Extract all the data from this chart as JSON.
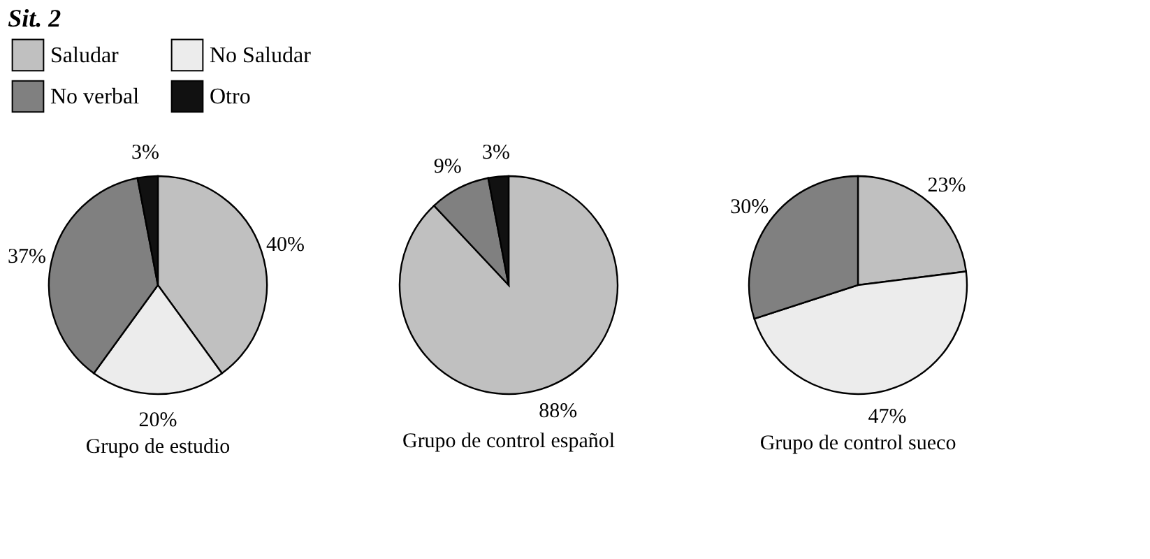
{
  "chart_data": [
    {
      "type": "pie",
      "title": "Grupo de estudio",
      "annotations": [
        "Sit. 2"
      ],
      "legend": "top",
      "categories": [
        "Saludar",
        "No Saludar",
        "No verbal",
        "Otro"
      ],
      "values": [
        40,
        20,
        37,
        3
      ],
      "value_labels": [
        "40%",
        "20%",
        "37%",
        "3%"
      ],
      "colors": [
        "#c0c0c0",
        "#ececec",
        "#808080",
        "#111111"
      ]
    },
    {
      "type": "pie",
      "title": "Grupo de control español",
      "categories": [
        null,
        null,
        null,
        null
      ],
      "values": [
        88,
        0,
        9,
        3
      ],
      "value_labels": [
        "88%",
        null,
        "9%",
        "3%"
      ],
      "colors": [
        "#c0c0c0",
        "#ececec",
        "#808080",
        "#111111"
      ]
    },
    {
      "type": "pie",
      "title": "Grupo de control sueco",
      "categories": [
        null,
        null,
        null,
        null
      ],
      "values": [
        23,
        47,
        30,
        0
      ],
      "value_labels": [
        "23%",
        "47%",
        "30%",
        null
      ],
      "colors": [
        "#c0c0c0",
        "#ececec",
        "#808080",
        "#111111"
      ]
    }
  ]
}
